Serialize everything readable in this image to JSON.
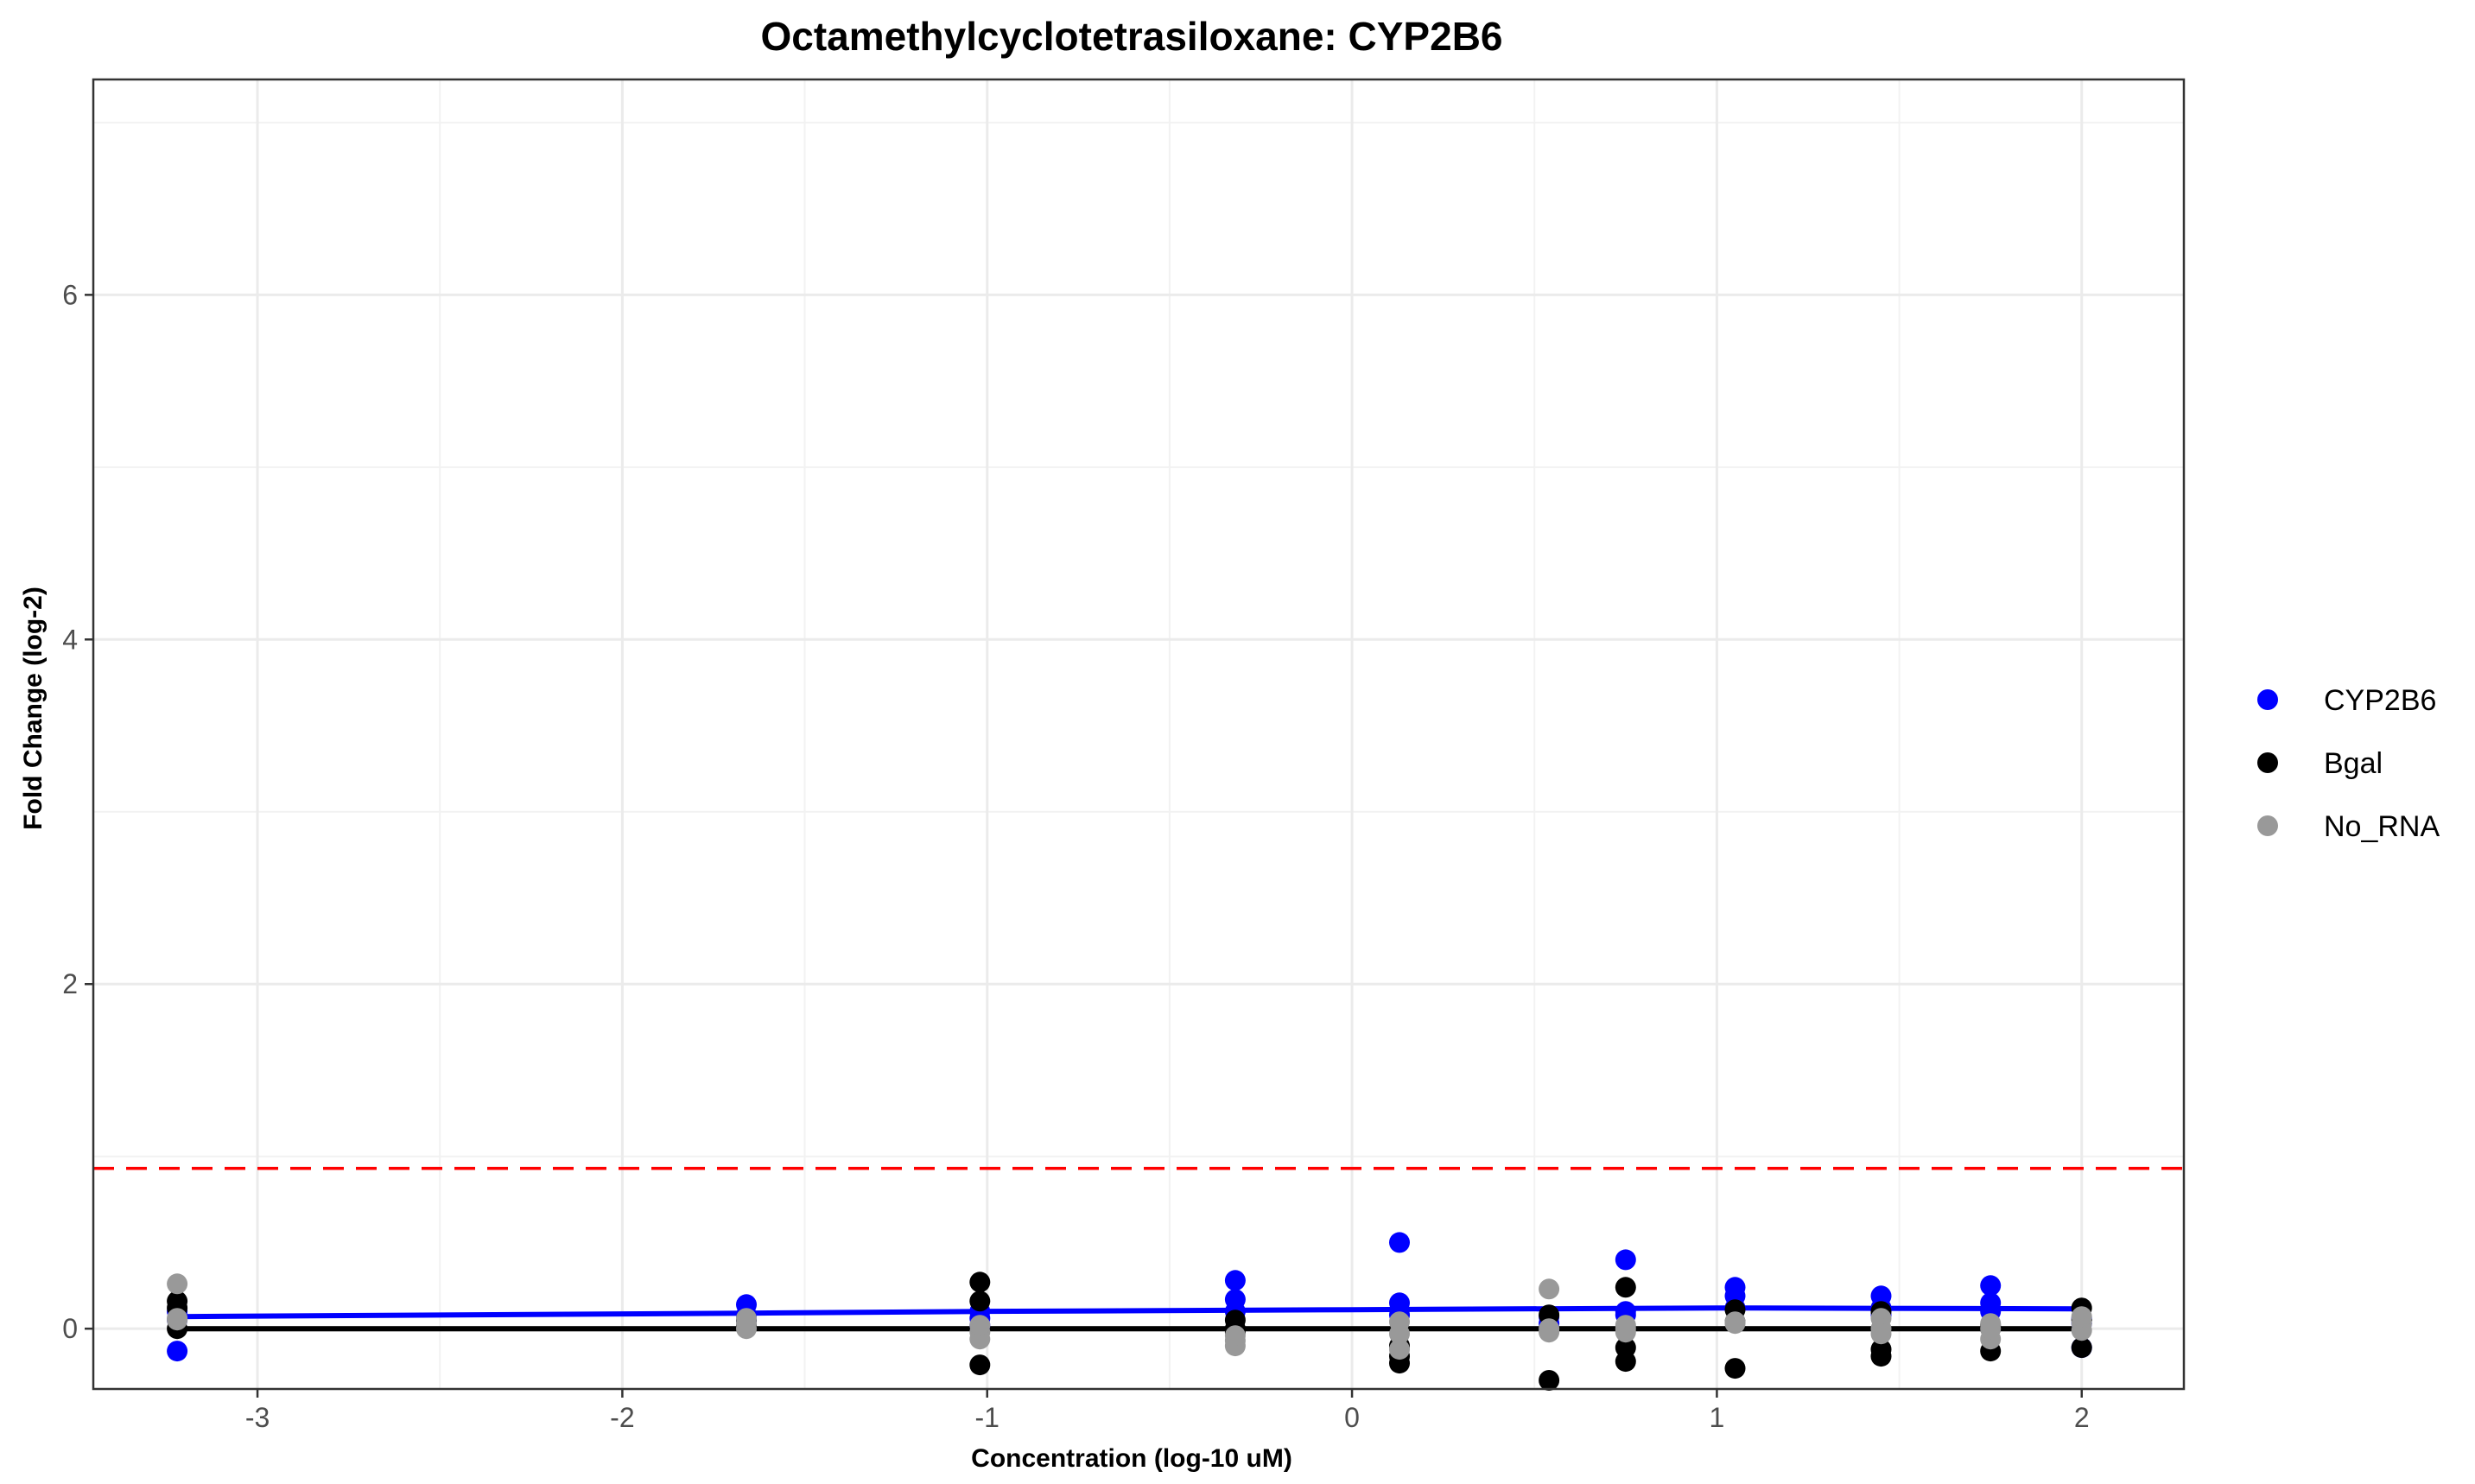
{
  "chart_data": {
    "type": "scatter",
    "title": "Octamethylcyclotetrasiloxane: CYP2B6",
    "xlabel": "Concentration (log-10 uM)",
    "ylabel": "Fold Change (log-2)",
    "xlim": [
      -3.45,
      2.28
    ],
    "ylim": [
      -0.35,
      7.25
    ],
    "x_ticks": [
      -3,
      -2,
      -1,
      0,
      1,
      2
    ],
    "x_tick_labels": [
      "-3",
      "-2",
      "-1",
      "0",
      "1",
      "2"
    ],
    "y_ticks": [
      0,
      2,
      4,
      6
    ],
    "y_tick_labels": [
      "0",
      "2",
      "4",
      "6"
    ],
    "grid": true,
    "legend_position": "right",
    "threshold": {
      "y": 0.93,
      "color": "#ff0000",
      "style": "dashed"
    },
    "series": [
      {
        "name": "CYP2B6",
        "color": "#0000ff",
        "points": [
          [
            -3.22,
            -0.13
          ],
          [
            -3.22,
            0.1
          ],
          [
            -3.22,
            0.05
          ],
          [
            -1.66,
            0.14
          ],
          [
            -1.66,
            0.08
          ],
          [
            -1.66,
            0.05
          ],
          [
            -1.02,
            0.1
          ],
          [
            -1.02,
            0.02
          ],
          [
            -1.02,
            0.06
          ],
          [
            -0.32,
            0.28
          ],
          [
            -0.32,
            0.17
          ],
          [
            -0.32,
            0.1
          ],
          [
            0.13,
            0.5
          ],
          [
            0.13,
            0.15
          ],
          [
            0.13,
            0.08
          ],
          [
            0.54,
            0.07
          ],
          [
            0.54,
            0.03
          ],
          [
            0.75,
            0.4
          ],
          [
            0.75,
            0.1
          ],
          [
            0.75,
            0.08
          ],
          [
            1.05,
            0.24
          ],
          [
            1.05,
            0.19
          ],
          [
            1.05,
            0.12
          ],
          [
            1.45,
            0.19
          ],
          [
            1.45,
            0.12
          ],
          [
            1.45,
            0.08
          ],
          [
            1.75,
            0.25
          ],
          [
            1.75,
            0.15
          ],
          [
            1.75,
            0.1
          ],
          [
            2.0,
            -0.11
          ],
          [
            2.0,
            0.06
          ],
          [
            2.0,
            0.03
          ]
        ],
        "fit": [
          [
            -3.22,
            0.07
          ],
          [
            -1.66,
            0.09
          ],
          [
            -1.02,
            0.1
          ],
          [
            0.0,
            0.11
          ],
          [
            1.0,
            0.12
          ],
          [
            2.0,
            0.115
          ]
        ]
      },
      {
        "name": "Bgal",
        "color": "#000000",
        "points": [
          [
            -3.22,
            0.16
          ],
          [
            -3.22,
            0.12
          ],
          [
            -3.22,
            0.0
          ],
          [
            -1.66,
            0.05
          ],
          [
            -1.66,
            0.02
          ],
          [
            -1.02,
            0.27
          ],
          [
            -1.02,
            0.16
          ],
          [
            -1.02,
            -0.21
          ],
          [
            -0.32,
            0.05
          ],
          [
            -0.32,
            -0.02
          ],
          [
            -0.32,
            0.0
          ],
          [
            0.13,
            -0.1
          ],
          [
            0.13,
            -0.2
          ],
          [
            0.13,
            -0.16
          ],
          [
            0.54,
            0.08
          ],
          [
            0.54,
            -0.3
          ],
          [
            0.75,
            0.24
          ],
          [
            0.75,
            -0.11
          ],
          [
            0.75,
            -0.19
          ],
          [
            1.05,
            0.11
          ],
          [
            1.05,
            0.04
          ],
          [
            1.05,
            -0.23
          ],
          [
            1.45,
            0.1
          ],
          [
            1.45,
            -0.12
          ],
          [
            1.45,
            -0.16
          ],
          [
            1.75,
            0.02
          ],
          [
            1.75,
            -0.13
          ],
          [
            1.75,
            0.0
          ],
          [
            2.0,
            0.12
          ],
          [
            2.0,
            -0.11
          ],
          [
            2.0,
            0.05
          ]
        ],
        "fit": [
          [
            -3.22,
            0.0
          ],
          [
            2.0,
            0.0
          ]
        ]
      },
      {
        "name": "No_RNA",
        "color": "#999999",
        "points": [
          [
            -3.22,
            0.26
          ],
          [
            -3.22,
            0.05
          ],
          [
            -3.22,
            0.06
          ],
          [
            -1.66,
            0.06
          ],
          [
            -1.66,
            0.03
          ],
          [
            -1.66,
            0.0
          ],
          [
            -1.02,
            -0.02
          ],
          [
            -1.02,
            -0.06
          ],
          [
            -1.02,
            0.02
          ],
          [
            -0.32,
            -0.07
          ],
          [
            -0.32,
            -0.1
          ],
          [
            -0.32,
            -0.04
          ],
          [
            0.13,
            0.04
          ],
          [
            0.13,
            -0.12
          ],
          [
            0.13,
            -0.03
          ],
          [
            0.54,
            0.23
          ],
          [
            0.54,
            0.0
          ],
          [
            0.54,
            -0.02
          ],
          [
            0.75,
            0.0
          ],
          [
            0.75,
            -0.02
          ],
          [
            0.75,
            0.02
          ],
          [
            1.05,
            0.03
          ],
          [
            1.05,
            0.04
          ],
          [
            1.45,
            0.06
          ],
          [
            1.45,
            0.0
          ],
          [
            1.45,
            -0.03
          ],
          [
            1.75,
            0.03
          ],
          [
            1.75,
            -0.06
          ],
          [
            1.75,
            0.0
          ],
          [
            2.0,
            0.03
          ],
          [
            2.0,
            -0.01
          ],
          [
            2.0,
            0.07
          ]
        ],
        "fit": [
          [
            -3.22,
            0.0
          ],
          [
            2.0,
            0.0
          ]
        ]
      }
    ]
  }
}
